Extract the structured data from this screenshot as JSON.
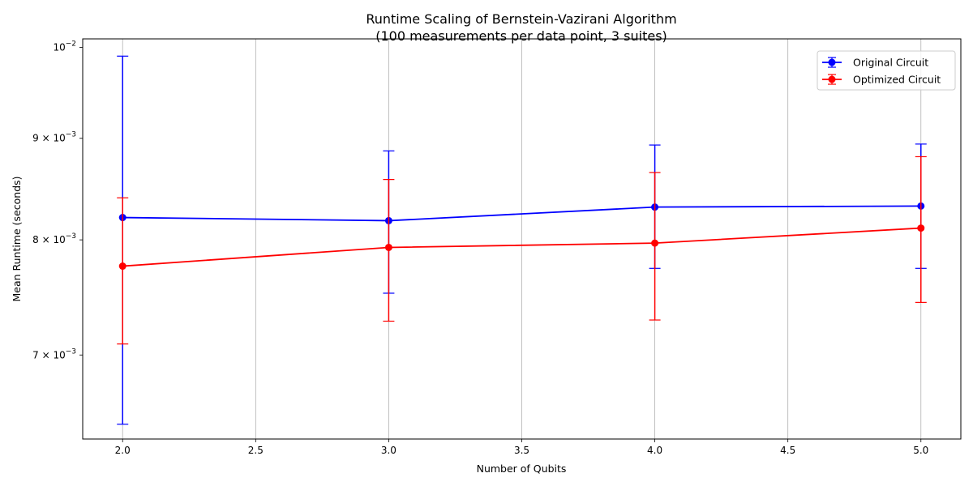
{
  "chart_data": {
    "type": "line",
    "title": "Runtime Scaling of Bernstein-Vazirani Algorithm",
    "subtitle": "(100 measurements per data point, 3 suites)",
    "xlabel": "Number of Qubits",
    "ylabel": "Mean Runtime (seconds)",
    "xlim": [
      1.85,
      5.15
    ],
    "ylim": [
      0.00635,
      0.0101
    ],
    "y_scale": "log",
    "grid": "x",
    "x_ticks": [
      2.0,
      2.5,
      3.0,
      3.5,
      4.0,
      4.5,
      5.0
    ],
    "x_tick_labels": [
      "2.0",
      "2.5",
      "3.0",
      "3.5",
      "4.0",
      "4.5",
      "5.0"
    ],
    "y_ticks": [
      0.007,
      0.008,
      0.009,
      0.01
    ],
    "y_tick_labels": [
      {
        "base": "7 × 10",
        "exp": "−3"
      },
      {
        "base": "8 × 10",
        "exp": "−3"
      },
      {
        "base": "9 × 10",
        "exp": "−3"
      },
      {
        "base": "10",
        "exp": "−2"
      }
    ],
    "legend_position": "top-right",
    "series": [
      {
        "name": "Original Circuit",
        "color": "#0000ff",
        "marker": "circle",
        "x": [
          2,
          3,
          4,
          5
        ],
        "y": [
          0.00821,
          0.00818,
          0.00831,
          0.00832
        ],
        "err_low": [
          0.00646,
          0.00752,
          0.00774,
          0.00774
        ],
        "err_high": [
          0.0099,
          0.00887,
          0.00893,
          0.00894
        ]
      },
      {
        "name": "Optimized Circuit",
        "color": "#ff0000",
        "marker": "circle",
        "x": [
          2,
          3,
          4,
          5
        ],
        "y": [
          0.00776,
          0.00793,
          0.00797,
          0.00811
        ],
        "err_low": [
          0.00709,
          0.00728,
          0.00729,
          0.00744
        ],
        "err_high": [
          0.0084,
          0.00858,
          0.00865,
          0.00881
        ]
      }
    ]
  }
}
